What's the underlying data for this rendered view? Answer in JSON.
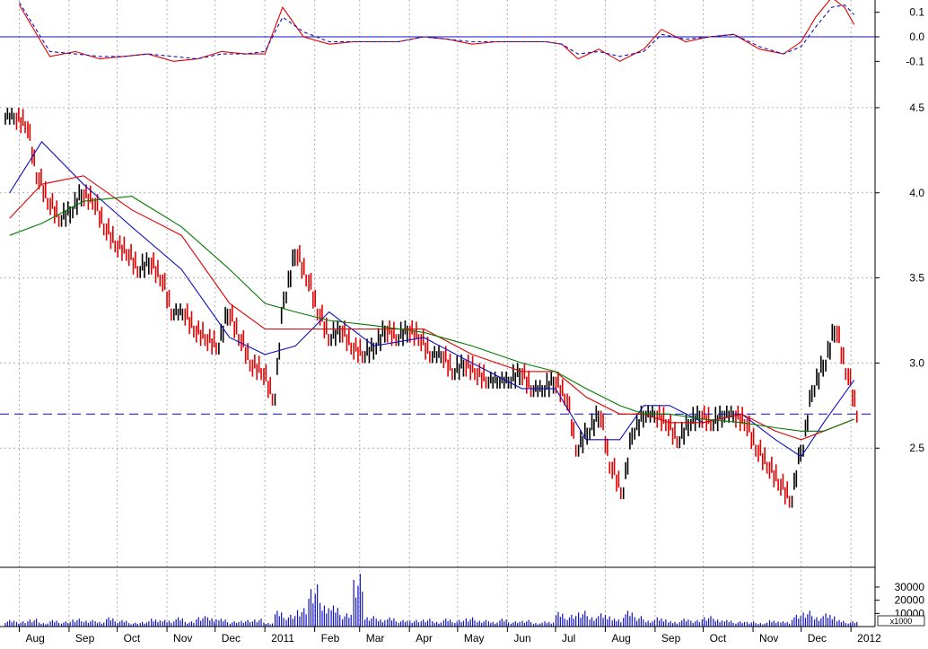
{
  "chart_data": [
    {
      "type": "line",
      "panel": "oscillator",
      "ylim": [
        -0.15,
        0.15
      ],
      "y_ticks": [
        "0.1",
        "0.0",
        "-0.1"
      ],
      "zero_line": 0.0,
      "series": [
        {
          "style": "solid",
          "color": "#e00000",
          "x": [
            "2010-08-01",
            "2010-08-20",
            "2010-09-05",
            "2010-09-20",
            "2010-10-05",
            "2010-10-20",
            "2010-11-05",
            "2010-11-20",
            "2010-12-05",
            "2010-12-20",
            "2011-01-01",
            "2011-01-12",
            "2011-01-25",
            "2011-02-10",
            "2011-02-25",
            "2011-03-10",
            "2011-03-25",
            "2011-04-10",
            "2011-04-25",
            "2011-05-10",
            "2011-05-25",
            "2011-06-10",
            "2011-06-25",
            "2011-07-05",
            "2011-07-15",
            "2011-07-28",
            "2011-08-10",
            "2011-08-25",
            "2011-09-05",
            "2011-09-20",
            "2011-10-05",
            "2011-10-20",
            "2011-11-05",
            "2011-11-20",
            "2011-12-01",
            "2011-12-10",
            "2011-12-20",
            "2011-12-28",
            "2012-01-03"
          ],
          "values": [
            0.13,
            -0.08,
            -0.06,
            -0.09,
            -0.08,
            -0.07,
            -0.1,
            -0.09,
            -0.06,
            -0.07,
            -0.07,
            0.12,
            0.0,
            -0.03,
            -0.02,
            -0.02,
            -0.02,
            0.0,
            -0.01,
            -0.03,
            -0.02,
            -0.02,
            -0.02,
            -0.03,
            -0.09,
            -0.05,
            -0.1,
            -0.05,
            0.03,
            -0.02,
            0.0,
            0.01,
            -0.05,
            -0.07,
            -0.02,
            0.08,
            0.16,
            0.12,
            0.05
          ]
        },
        {
          "style": "dashed",
          "color": "#1010c0",
          "x": [
            "2010-08-01",
            "2010-08-20",
            "2010-09-05",
            "2010-09-20",
            "2010-10-05",
            "2010-10-20",
            "2010-11-05",
            "2010-11-20",
            "2010-12-05",
            "2010-12-20",
            "2011-01-01",
            "2011-01-12",
            "2011-01-25",
            "2011-02-10",
            "2011-02-25",
            "2011-03-10",
            "2011-03-25",
            "2011-04-10",
            "2011-04-25",
            "2011-05-10",
            "2011-05-25",
            "2011-06-10",
            "2011-06-25",
            "2011-07-05",
            "2011-07-15",
            "2011-07-28",
            "2011-08-10",
            "2011-08-25",
            "2011-09-05",
            "2011-09-20",
            "2011-10-05",
            "2011-10-20",
            "2011-11-05",
            "2011-11-20",
            "2011-12-01",
            "2011-12-10",
            "2011-12-20",
            "2011-12-28",
            "2012-01-03"
          ],
          "values": [
            0.14,
            -0.06,
            -0.07,
            -0.08,
            -0.08,
            -0.07,
            -0.08,
            -0.09,
            -0.07,
            -0.07,
            -0.06,
            0.08,
            0.02,
            -0.02,
            -0.02,
            -0.02,
            -0.02,
            0.0,
            -0.01,
            -0.02,
            -0.02,
            -0.02,
            -0.02,
            -0.03,
            -0.07,
            -0.06,
            -0.08,
            -0.06,
            0.01,
            -0.01,
            0.0,
            0.01,
            -0.04,
            -0.07,
            -0.04,
            0.04,
            0.12,
            0.13,
            0.09
          ]
        }
      ]
    },
    {
      "type": "candlestick",
      "panel": "price",
      "ylim": [
        1.8,
        4.7
      ],
      "y_ticks": [
        "4.5",
        "4.0",
        "3.5",
        "3.0",
        "2.5"
      ],
      "horizontal_level": 2.7,
      "close": {
        "x": [
          "2010-07-26",
          "2010-08-02",
          "2010-08-09",
          "2010-08-16",
          "2010-08-23",
          "2010-08-30",
          "2010-09-06",
          "2010-09-13",
          "2010-09-20",
          "2010-09-27",
          "2010-10-04",
          "2010-10-11",
          "2010-10-18",
          "2010-10-25",
          "2010-11-01",
          "2010-11-08",
          "2010-11-15",
          "2010-11-22",
          "2010-11-29",
          "2010-12-06",
          "2010-12-13",
          "2010-12-20",
          "2010-12-27",
          "2011-01-03",
          "2011-01-10",
          "2011-01-17",
          "2011-01-24",
          "2011-01-31",
          "2011-02-07",
          "2011-02-14",
          "2011-02-21",
          "2011-02-28",
          "2011-03-07",
          "2011-03-14",
          "2011-03-21",
          "2011-03-28",
          "2011-04-04",
          "2011-04-11",
          "2011-04-18",
          "2011-04-25",
          "2011-05-02",
          "2011-05-09",
          "2011-05-16",
          "2011-05-23",
          "2011-05-30",
          "2011-06-06",
          "2011-06-13",
          "2011-06-20",
          "2011-06-27",
          "2011-07-04",
          "2011-07-11",
          "2011-07-18",
          "2011-07-25",
          "2011-08-01",
          "2011-08-08",
          "2011-08-15",
          "2011-08-22",
          "2011-08-29",
          "2011-09-05",
          "2011-09-12",
          "2011-09-19",
          "2011-09-26",
          "2011-10-03",
          "2011-10-10",
          "2011-10-17",
          "2011-10-24",
          "2011-10-31",
          "2011-11-07",
          "2011-11-14",
          "2011-11-21",
          "2011-11-28",
          "2011-12-05",
          "2011-12-12",
          "2011-12-19",
          "2011-12-26",
          "2012-01-02"
        ],
        "values": [
          4.45,
          4.4,
          4.1,
          3.95,
          3.85,
          3.9,
          4.0,
          3.95,
          3.8,
          3.7,
          3.65,
          3.55,
          3.6,
          3.5,
          3.3,
          3.3,
          3.2,
          3.15,
          3.1,
          3.3,
          3.15,
          3.0,
          2.95,
          2.8,
          3.4,
          3.65,
          3.5,
          3.3,
          3.15,
          3.2,
          3.1,
          3.05,
          3.1,
          3.2,
          3.15,
          3.2,
          3.15,
          3.05,
          3.05,
          2.95,
          3.0,
          2.95,
          2.9,
          2.9,
          2.9,
          2.95,
          2.85,
          2.85,
          2.9,
          2.8,
          2.5,
          2.6,
          2.7,
          2.4,
          2.25,
          2.6,
          2.7,
          2.7,
          2.65,
          2.55,
          2.65,
          2.7,
          2.65,
          2.7,
          2.7,
          2.65,
          2.5,
          2.4,
          2.3,
          2.2,
          2.5,
          2.85,
          3.0,
          3.2,
          2.95,
          2.7
        ]
      },
      "series": [
        {
          "name": "",
          "color": "#1010c0",
          "x": [
            "2010-07-26",
            "2010-08-15",
            "2010-09-10",
            "2010-10-10",
            "2010-11-10",
            "2010-12-10",
            "2011-01-01",
            "2011-01-20",
            "2011-02-10",
            "2011-03-10",
            "2011-04-10",
            "2011-05-10",
            "2011-06-10",
            "2011-07-01",
            "2011-07-20",
            "2011-08-10",
            "2011-08-25",
            "2011-09-10",
            "2011-10-01",
            "2011-10-25",
            "2011-11-15",
            "2011-12-01",
            "2011-12-15",
            "2012-01-03"
          ],
          "values": [
            4.0,
            4.3,
            4.05,
            3.8,
            3.55,
            3.15,
            3.05,
            3.1,
            3.3,
            3.1,
            3.15,
            3.0,
            2.85,
            2.85,
            2.55,
            2.55,
            2.75,
            2.75,
            2.65,
            2.7,
            2.55,
            2.45,
            2.65,
            2.9
          ]
        },
        {
          "name": "",
          "color": "#e00000",
          "x": [
            "2010-07-26",
            "2010-08-15",
            "2010-09-10",
            "2010-10-10",
            "2010-11-10",
            "2010-12-10",
            "2011-01-01",
            "2011-01-20",
            "2011-02-10",
            "2011-03-10",
            "2011-04-10",
            "2011-05-10",
            "2011-06-10",
            "2011-07-01",
            "2011-07-20",
            "2011-08-10",
            "2011-08-25",
            "2011-09-10",
            "2011-10-01",
            "2011-10-25",
            "2011-11-15",
            "2011-12-01",
            "2011-12-15",
            "2012-01-03"
          ],
          "values": [
            3.85,
            4.05,
            4.1,
            3.9,
            3.75,
            3.35,
            3.2,
            3.2,
            3.2,
            3.2,
            3.2,
            3.05,
            2.95,
            2.95,
            2.8,
            2.7,
            2.7,
            2.65,
            2.65,
            2.7,
            2.6,
            2.55,
            2.6,
            2.67
          ]
        },
        {
          "name": "",
          "color": "#007a00",
          "x": [
            "2010-07-26",
            "2010-08-15",
            "2010-09-10",
            "2010-10-10",
            "2010-11-10",
            "2010-12-10",
            "2011-01-01",
            "2011-01-20",
            "2011-02-10",
            "2011-03-10",
            "2011-04-10",
            "2011-05-10",
            "2011-06-10",
            "2011-07-01",
            "2011-07-20",
            "2011-08-10",
            "2011-08-25",
            "2011-09-10",
            "2011-10-01",
            "2011-10-25",
            "2011-11-15",
            "2011-12-01",
            "2011-12-15",
            "2012-01-03"
          ],
          "values": [
            3.75,
            3.82,
            3.95,
            3.98,
            3.8,
            3.55,
            3.35,
            3.3,
            3.25,
            3.22,
            3.18,
            3.1,
            3.0,
            2.95,
            2.85,
            2.75,
            2.7,
            2.7,
            2.67,
            2.65,
            2.62,
            2.6,
            2.6,
            2.67
          ]
        }
      ]
    },
    {
      "type": "bar",
      "panel": "volume",
      "ylim": [
        0,
        45000
      ],
      "y_ticks": [
        "30000",
        "20000",
        "10000"
      ],
      "unit_label": "x1000",
      "x": [
        "2010-07-26",
        "2010-08-02",
        "2010-08-09",
        "2010-08-16",
        "2010-08-23",
        "2010-08-30",
        "2010-09-06",
        "2010-09-13",
        "2010-09-20",
        "2010-09-27",
        "2010-10-04",
        "2010-10-11",
        "2010-10-18",
        "2010-10-25",
        "2010-11-01",
        "2010-11-08",
        "2010-11-15",
        "2010-11-22",
        "2010-11-29",
        "2010-12-06",
        "2010-12-13",
        "2010-12-20",
        "2010-12-27",
        "2011-01-03",
        "2011-01-10",
        "2011-01-17",
        "2011-01-24",
        "2011-01-31",
        "2011-02-07",
        "2011-02-14",
        "2011-02-21",
        "2011-02-28",
        "2011-03-07",
        "2011-03-14",
        "2011-03-21",
        "2011-03-28",
        "2011-04-04",
        "2011-04-11",
        "2011-04-18",
        "2011-04-25",
        "2011-05-02",
        "2011-05-09",
        "2011-05-16",
        "2011-05-23",
        "2011-05-30",
        "2011-06-06",
        "2011-06-13",
        "2011-06-20",
        "2011-06-27",
        "2011-07-04",
        "2011-07-11",
        "2011-07-18",
        "2011-07-25",
        "2011-08-01",
        "2011-08-08",
        "2011-08-15",
        "2011-08-22",
        "2011-08-29",
        "2011-09-05",
        "2011-09-12",
        "2011-09-19",
        "2011-09-26",
        "2011-10-03",
        "2011-10-10",
        "2011-10-17",
        "2011-10-24",
        "2011-10-31",
        "2011-11-07",
        "2011-11-14",
        "2011-11-21",
        "2011-11-28",
        "2011-12-05",
        "2011-12-12",
        "2011-12-19",
        "2011-12-26",
        "2012-01-02"
      ],
      "values": [
        5000,
        4000,
        6000,
        3000,
        5000,
        4000,
        6000,
        5000,
        4000,
        7000,
        5000,
        3000,
        4000,
        6000,
        5000,
        7000,
        4000,
        8000,
        7000,
        6000,
        4000,
        5000,
        6000,
        3000,
        12000,
        9000,
        14000,
        32000,
        18000,
        16000,
        10000,
        40000,
        8000,
        6000,
        7000,
        5000,
        5000,
        6000,
        4000,
        6000,
        5000,
        7000,
        5000,
        4000,
        6000,
        4000,
        5000,
        3000,
        4000,
        11000,
        9000,
        12000,
        8000,
        10000,
        6000,
        12000,
        8000,
        5000,
        7000,
        4000,
        6000,
        5000,
        8000,
        6000,
        5000,
        4000,
        4000,
        3000,
        5000,
        4000,
        9000,
        12000,
        8000,
        10000,
        5000,
        4000
      ]
    }
  ],
  "x_axis": {
    "labels": [
      "Aug",
      "Sep",
      "Oct",
      "Nov",
      "Dec",
      "2011",
      "Feb",
      "Mar",
      "Apr",
      "May",
      "Jun",
      "Jul",
      "Aug",
      "Sep",
      "Oct",
      "Nov",
      "Dec",
      "2012"
    ]
  },
  "colors": {
    "up_bar": "#000000",
    "down_bar": "#e00000",
    "grid": "#b0b0b0",
    "level_line": "#1010a0",
    "volume_bar": "#1010c0"
  }
}
